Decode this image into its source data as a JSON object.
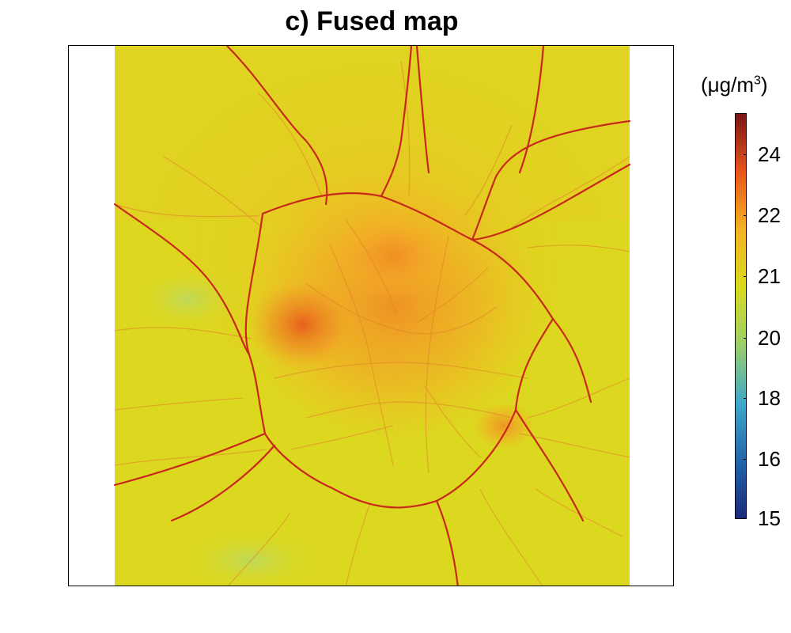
{
  "chart_data": {
    "type": "heatmap",
    "title": "c) Fused map",
    "colorbar": {
      "unit_prefix": "(μg/m",
      "unit_exponent": "3",
      "unit_suffix": ")",
      "range": [
        15,
        25.5
      ],
      "ticks": [
        "15",
        "16",
        "18",
        "20",
        "21",
        "22",
        "24"
      ],
      "colors": [
        "#1b2a7a",
        "#2166ac",
        "#3fa9c9",
        "#9ccf6a",
        "#d8da20",
        "#f4b324",
        "#e8561c",
        "#7a1515"
      ]
    },
    "background_level": 21,
    "hotspot_level": 23,
    "road_level": 25
  }
}
